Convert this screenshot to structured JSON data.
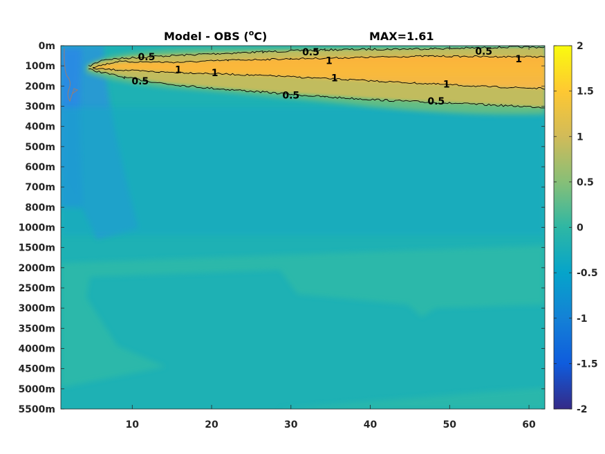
{
  "chart_data": {
    "type": "heatmap",
    "title": "Model - OBS (",
    "title_super": "o",
    "title_unit": "C)",
    "max_label": "MAX=1.61",
    "x_ticks": [
      10,
      20,
      30,
      40,
      50,
      60
    ],
    "x_range": [
      1,
      62
    ],
    "y_tick_labels": [
      "0m",
      "100m",
      "200m",
      "300m",
      "400m",
      "500m",
      "600m",
      "700m",
      "800m",
      "1000m",
      "1500m",
      "2000m",
      "2500m",
      "3000m",
      "3500m",
      "4000m",
      "4500m",
      "5000m",
      "5500m"
    ],
    "colorbar": {
      "range": [
        -2,
        2
      ],
      "tick_values": [
        2,
        1.5,
        1,
        0.5,
        0,
        -0.5,
        -1,
        -1.5,
        -2
      ],
      "tick_labels": [
        "2",
        "1.5",
        "1",
        "0.5",
        "0",
        "-0.5",
        "-1",
        "-1.5",
        "-2"
      ],
      "colormap": "parula"
    },
    "background_value": 0.05,
    "contour_levels": [
      0.5,
      1
    ],
    "contour_labels": [
      {
        "text": "0.5",
        "x": 11.8,
        "depth_index": 0.55
      },
      {
        "text": "0.5",
        "x": 32.5,
        "depth_index": 0.3
      },
      {
        "text": "0.5",
        "x": 54.3,
        "depth_index": 0.28
      },
      {
        "text": "1",
        "x": 34.8,
        "depth_index": 0.73
      },
      {
        "text": "1",
        "x": 58.7,
        "depth_index": 0.65
      },
      {
        "text": "1",
        "x": 15.8,
        "depth_index": 1.18
      },
      {
        "text": "1",
        "x": 20.4,
        "depth_index": 1.33
      },
      {
        "text": "1",
        "x": 35.5,
        "depth_index": 1.6
      },
      {
        "text": "1",
        "x": 49.6,
        "depth_index": 1.9
      },
      {
        "text": "0.5",
        "x": 11.0,
        "depth_index": 1.75
      },
      {
        "text": "0.5",
        "x": 30.0,
        "depth_index": 2.45
      },
      {
        "text": "0.5",
        "x": 48.3,
        "depth_index": 2.75
      }
    ]
  }
}
